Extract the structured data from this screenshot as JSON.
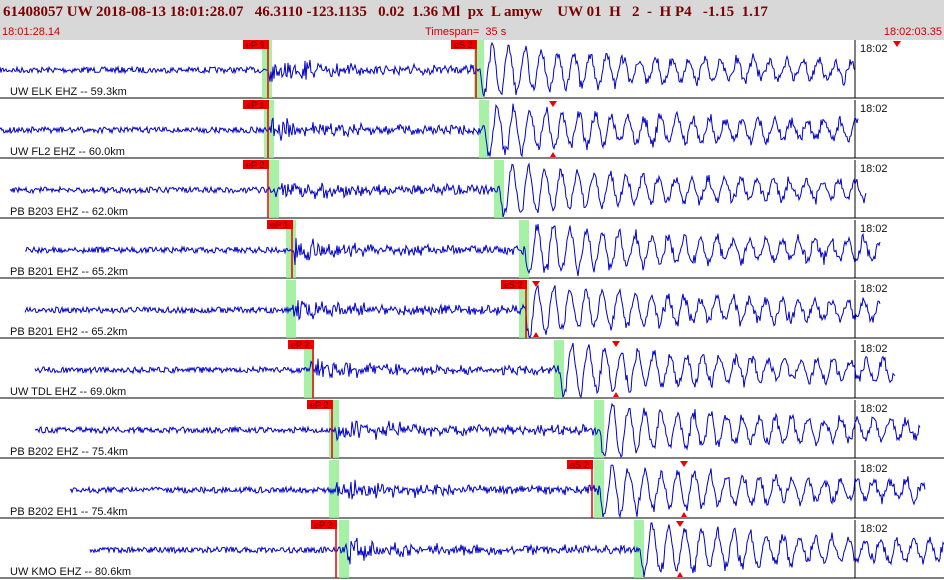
{
  "header": {
    "title": "61408057 UW 2018-08-13 18:01:28.07   46.3110 -123.1135   0.02  1.36 Ml  px  L amyw    UW 01  H   2  -  H P4   -1.15  1.17",
    "start_time": "18:01:28.14",
    "timespan": "Timespan=  35 s",
    "end_time": "18:02:03.35"
  },
  "traces": [
    {
      "label": "UW ELK EHZ -- 59.3km",
      "time_label": "18:02",
      "picks": [
        {
          "label": "eP 3"
        },
        {
          "label": "eS 2"
        }
      ]
    },
    {
      "label": "UW FL2 EHZ -- 60.0km",
      "time_label": "18:02",
      "picks": [
        {
          "label": "eP 1"
        }
      ]
    },
    {
      "label": "PB B203 EHZ -- 62.0km",
      "time_label": "18:02",
      "picks": [
        {
          "label": "eP 2"
        }
      ]
    },
    {
      "label": "PB B201 EHZ -- 65.2km",
      "time_label": "18:02",
      "picks": [
        {
          "label": "eP 1"
        }
      ]
    },
    {
      "label": "PB B201 EH2 -- 65.2km",
      "time_label": "18:02",
      "picks": [
        {
          "label": "eS 2"
        }
      ]
    },
    {
      "label": "UW TDL EHZ -- 69.0km",
      "time_label": "18:02",
      "picks": [
        {
          "label": "eP 2"
        }
      ]
    },
    {
      "label": "PB B202 EHZ -- 75.4km",
      "time_label": "18:02",
      "picks": [
        {
          "label": "eP 2"
        }
      ]
    },
    {
      "label": "PB B202 EH1 -- 75.4km",
      "time_label": "18:02",
      "picks": [
        {
          "label": "eS 2"
        }
      ]
    },
    {
      "label": "UW KMO EHZ -- 80.6km",
      "time_label": "18:02",
      "picks": [
        {
          "label": "eP 2"
        }
      ]
    }
  ]
}
